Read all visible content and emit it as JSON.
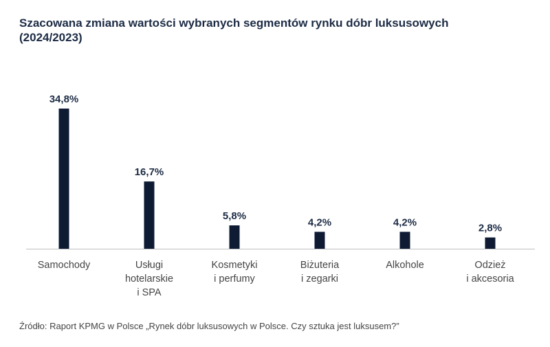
{
  "chart_data": {
    "type": "bar",
    "title_lines": [
      "Szacowana zmiana wartości wybranych segmentów rynku dóbr luksusowych",
      "(2024/2023)"
    ],
    "categories": [
      [
        "Samochody"
      ],
      [
        "Usługi",
        "hotelarskie",
        "i SPA"
      ],
      [
        "Kosmetyki",
        "i perfumy"
      ],
      [
        "Biżuteria",
        "i zegarki"
      ],
      [
        "Alkohole"
      ],
      [
        "Odzież",
        "i akcesoria"
      ]
    ],
    "values": [
      34.8,
      16.7,
      5.8,
      4.2,
      4.2,
      2.8
    ],
    "data_labels": [
      "34,8%",
      "16,7%",
      "5,8%",
      "4,2%",
      "4,2%",
      "2,8%"
    ],
    "unit": "%",
    "ylim": [
      0,
      34.8
    ],
    "grid": false,
    "bar_color": "#0e1b33",
    "axis_color": "#bdbdbd",
    "label_color": "#1c2b44",
    "category_color": "#444444"
  },
  "source": "Źródło: Raport KPMG w Polsce „Rynek dóbr luksusowych w Polsce. Czy sztuka jest luksusem?”"
}
